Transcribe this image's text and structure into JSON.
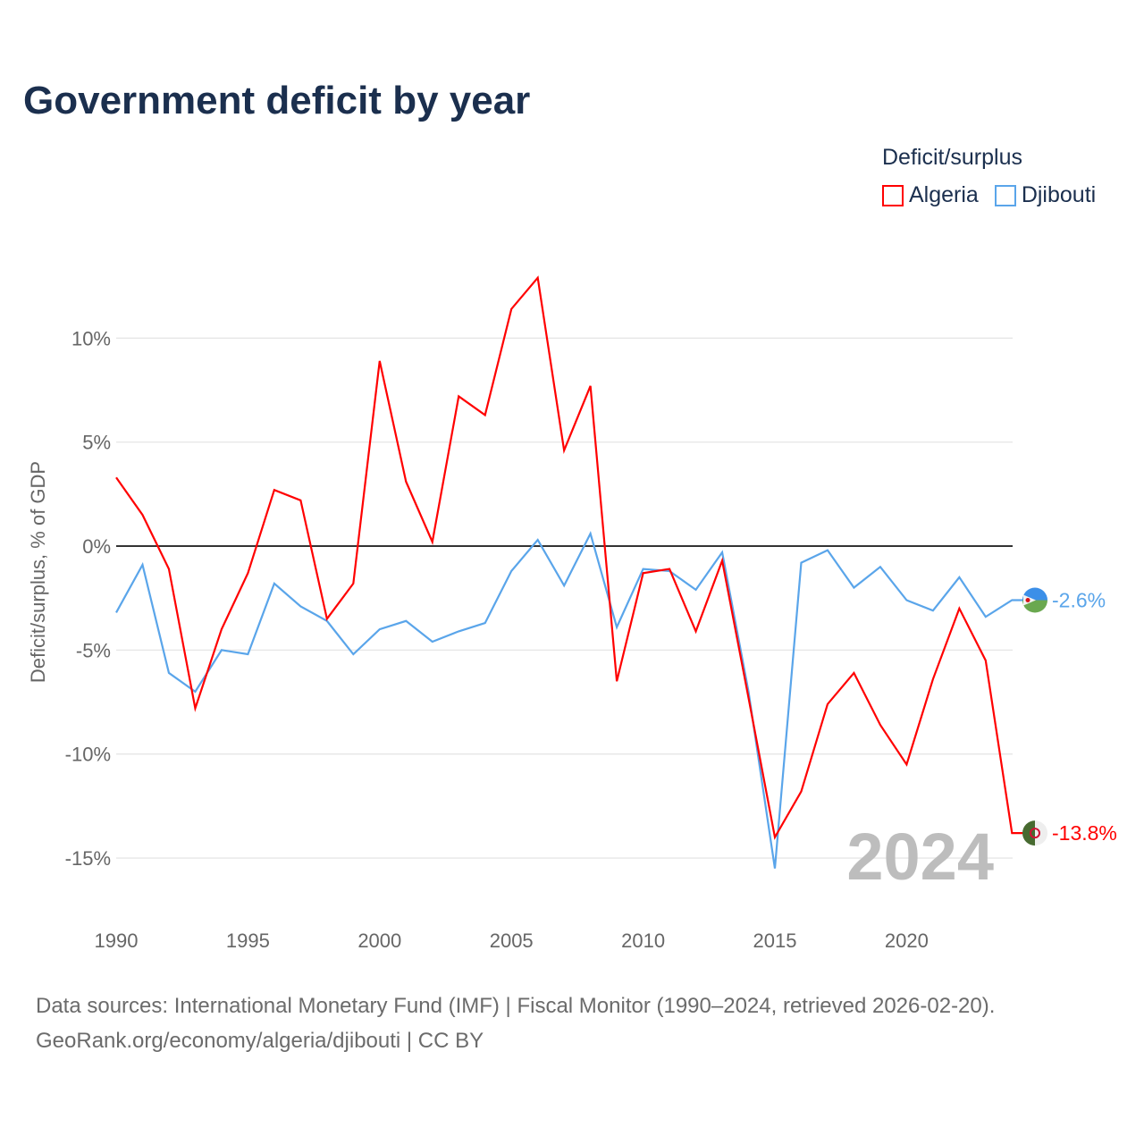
{
  "chart_data": {
    "type": "line",
    "title": "Government deficit by year",
    "ylabel": "Deficit/surplus, % of GDP",
    "xlabel": "",
    "xlim": [
      1990,
      2024
    ],
    "ylim": [
      -17.5,
      13.5
    ],
    "x_ticks": [
      1990,
      1995,
      2000,
      2005,
      2010,
      2015,
      2020
    ],
    "x_tick_labels": [
      "1990",
      "1995",
      "2000",
      "2005",
      "2010",
      "2015",
      "2020"
    ],
    "y_ticks": [
      10,
      5,
      0,
      -5,
      -10,
      -15
    ],
    "y_tick_labels": [
      "10%",
      "5%",
      "0%",
      "-5%",
      "-10%",
      "-15%"
    ],
    "grid": true,
    "legend_title": "Deficit/surplus",
    "legend_position": "top-right",
    "year_watermark": "2024",
    "x": [
      1990,
      1991,
      1992,
      1993,
      1994,
      1995,
      1996,
      1997,
      1998,
      1999,
      2000,
      2001,
      2002,
      2003,
      2004,
      2005,
      2006,
      2007,
      2008,
      2009,
      2010,
      2011,
      2012,
      2013,
      2014,
      2015,
      2016,
      2017,
      2018,
      2019,
      2020,
      2021,
      2022,
      2023,
      2024
    ],
    "series": [
      {
        "name": "Algeria",
        "color": "#ff0000",
        "end_label": "-13.8%",
        "flag": "algeria-flag",
        "values": [
          3.3,
          1.5,
          -1.1,
          -7.8,
          -4.0,
          -1.3,
          2.7,
          2.2,
          -3.5,
          -1.8,
          8.9,
          3.1,
          0.2,
          7.2,
          6.3,
          11.4,
          12.9,
          4.6,
          7.7,
          -6.5,
          -1.3,
          -1.1,
          -4.1,
          -0.7,
          -7.3,
          -14.0,
          -11.8,
          -7.6,
          -6.1,
          -8.6,
          -10.5,
          -6.4,
          -3.0,
          -5.5,
          -13.8
        ]
      },
      {
        "name": "Djibouti",
        "color": "#5aa5ea",
        "end_label": "-2.6%",
        "flag": "djibouti-flag",
        "values": [
          -3.2,
          -0.9,
          -6.1,
          -7.0,
          -5.0,
          -5.2,
          -1.8,
          -2.9,
          -3.6,
          -5.2,
          -4.0,
          -3.6,
          -4.6,
          -4.1,
          -3.7,
          -1.2,
          0.3,
          -1.9,
          0.6,
          -3.9,
          -1.1,
          -1.2,
          -2.1,
          -0.3,
          -7.0,
          -15.5,
          -0.8,
          -0.2,
          -2.0,
          -1.0,
          -2.6,
          -3.1,
          -1.5,
          -3.4,
          -2.6
        ]
      }
    ],
    "source_lines": [
      "Data sources: International Monetary Fund (IMF) | Fiscal Monitor (1990–2024, retrieved 2026-02-20).",
      "GeoRank.org/economy/algeria/djibouti | CC BY"
    ]
  }
}
